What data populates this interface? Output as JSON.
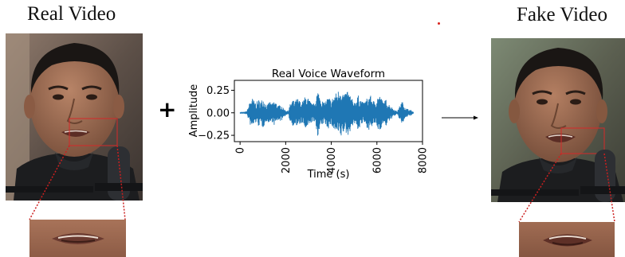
{
  "real_panel": {
    "title": "Real Video",
    "photo": "real-speaker-face-photo",
    "crop": "real-mouth-region-crop"
  },
  "fake_panel": {
    "title": "Fake Video",
    "photo": "fake-speaker-face-photo",
    "crop": "fake-mouth-region-crop"
  },
  "plus_symbol": "+",
  "arrow": "right-arrow-icon",
  "colors": {
    "waveform": "#1f77b4",
    "crop_box": "#d42a2a",
    "zoom_lines": "#cc1f1f",
    "skin": "#9a6a4f",
    "hair": "#1a1614",
    "shirt": "#1c1d1f",
    "microphone": "#2d2f33"
  },
  "chart_data": {
    "type": "line",
    "title": "Real Voice Waveform",
    "xlabel": "Time (s)",
    "ylabel": "Amplitude",
    "xlim": [
      -250,
      8000
    ],
    "ylim": [
      -0.32,
      0.36
    ],
    "xticks": [
      0,
      2000,
      4000,
      6000,
      8000
    ],
    "xtick_labels": [
      "0",
      "2000",
      "4000",
      "6000",
      "8000"
    ],
    "yticks": [
      0.25,
      0.0,
      -0.25
    ],
    "ytick_labels": [
      "0.25",
      "0.00",
      "−0.25"
    ],
    "x_tick_rotation": "vertical",
    "grid": false,
    "legend": "none",
    "series": [
      {
        "x_start": 0,
        "x_end": 7600,
        "envelope": [
          [
            0,
            0.01
          ],
          [
            100,
            0.01
          ],
          [
            200,
            0.01
          ],
          [
            300,
            0.02
          ],
          [
            400,
            0.1
          ],
          [
            500,
            0.18
          ],
          [
            600,
            0.14
          ],
          [
            700,
            0.11
          ],
          [
            800,
            0.15
          ],
          [
            900,
            0.13
          ],
          [
            1000,
            0.17
          ],
          [
            1100,
            0.12
          ],
          [
            1200,
            0.09
          ],
          [
            1300,
            0.13
          ],
          [
            1400,
            0.1
          ],
          [
            1500,
            0.14
          ],
          [
            1600,
            0.11
          ],
          [
            1700,
            0.08
          ],
          [
            1800,
            0.1
          ],
          [
            1900,
            0.05
          ],
          [
            2000,
            0.03
          ],
          [
            2100,
            0.02
          ],
          [
            2200,
            0.1
          ],
          [
            2300,
            0.15
          ],
          [
            2400,
            0.12
          ],
          [
            2500,
            0.17
          ],
          [
            2600,
            0.14
          ],
          [
            2700,
            0.11
          ],
          [
            2800,
            0.16
          ],
          [
            2900,
            0.2
          ],
          [
            3000,
            0.16
          ],
          [
            3100,
            0.12
          ],
          [
            3200,
            0.09
          ],
          [
            3300,
            0.15
          ],
          [
            3400,
            0.26
          ],
          [
            3500,
            0.2
          ],
          [
            3600,
            0.14
          ],
          [
            3700,
            0.11
          ],
          [
            3800,
            0.16
          ],
          [
            3900,
            0.18
          ],
          [
            4000,
            0.13
          ],
          [
            4100,
            0.2
          ],
          [
            4200,
            0.22
          ],
          [
            4300,
            0.25
          ],
          [
            4400,
            0.3
          ],
          [
            4500,
            0.24
          ],
          [
            4600,
            0.2
          ],
          [
            4700,
            0.27
          ],
          [
            4800,
            0.22
          ],
          [
            4900,
            0.16
          ],
          [
            5000,
            0.12
          ],
          [
            5100,
            0.16
          ],
          [
            5200,
            0.2
          ],
          [
            5300,
            0.15
          ],
          [
            5400,
            0.11
          ],
          [
            5500,
            0.14
          ],
          [
            5600,
            0.18
          ],
          [
            5700,
            0.2
          ],
          [
            5800,
            0.16
          ],
          [
            5900,
            0.12
          ],
          [
            6000,
            0.18
          ],
          [
            6100,
            0.21
          ],
          [
            6200,
            0.16
          ],
          [
            6300,
            0.12
          ],
          [
            6400,
            0.15
          ],
          [
            6500,
            0.11
          ],
          [
            6600,
            0.08
          ],
          [
            6700,
            0.05
          ],
          [
            6800,
            0.03
          ],
          [
            6900,
            0.02
          ],
          [
            7000,
            0.08
          ],
          [
            7100,
            0.13
          ],
          [
            7200,
            0.09
          ],
          [
            7300,
            0.05
          ],
          [
            7400,
            0.04
          ],
          [
            7500,
            0.03
          ],
          [
            7600,
            0.01
          ]
        ]
      }
    ]
  }
}
